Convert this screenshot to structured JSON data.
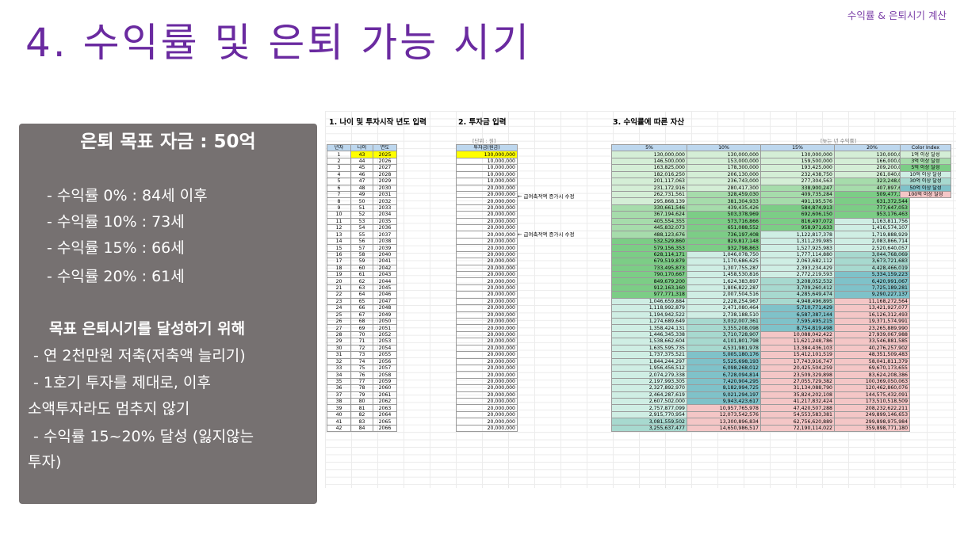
{
  "slide": {
    "top_label": "수익률 & 은퇴시기 계산",
    "title": "4. 수익률 및 은퇴 가능 시기"
  },
  "panel": {
    "title": "은퇴 목표 자금 : 50억",
    "rates": [
      "- 수익률    0% : 84세 이후",
      "- 수익률 10% : 73세",
      "- 수익률 15% : 66세",
      "- 수익률 20% : 61세"
    ],
    "plan_title": "목표 은퇴시기를 달성하기 위해",
    "plan_lines": [
      "- 연 2천만원 저축(저축액 늘리기)",
      "- 1호기 투자를 제대로, 이후",
      "소액투자라도 멈추지 않기",
      "- 수익률 15~20% 달성 (잃지않는",
      "투자)"
    ]
  },
  "sheet": {
    "section1": "1. 나이 및 투자시작 년도 입력",
    "section2": "2. 투자금 입력",
    "section3": "3. 수익률에 따른 자산",
    "unit_note": "[단위 : 원]",
    "year_note": "[늦는 년 수익률]",
    "headers": [
      "년차",
      "나이",
      "연도",
      "투자금(원금)",
      "5%",
      "10%",
      "15%",
      "20%"
    ],
    "note_text": "← 급여축적액 증가시 수정",
    "legend_title": "Color Index",
    "legend_items": [
      "1억 이상 달성",
      "3억 이상 달성",
      "5억 이상 달성",
      "10억 이상 달성",
      "30억 이상 달성",
      "50억 이상 달성",
      "100억 이상 달성"
    ],
    "legend_colors": [
      "#d4eed6",
      "#a6dcab",
      "#7ccd86",
      "#cfeee4",
      "#a7d9cf",
      "#7fc2c9",
      "#f4c6c6"
    ],
    "principal": [
      "130,000,000",
      "10,000,000",
      "10,000,000",
      "10,000,000",
      "10,000,000",
      "20,000,000",
      "20,000,000",
      "20,000,000",
      "20,000,000",
      "20,000,000",
      "20,000,000",
      "20,000,000",
      "20,000,000",
      "20,000,000",
      "20,000,000",
      "20,000,000",
      "20,000,000",
      "20,000,000",
      "20,000,000",
      "20,000,000",
      "20,000,000",
      "20,000,000",
      "20,000,000",
      "20,000,000",
      "20,000,000",
      "20,000,000",
      "20,000,000",
      "20,000,000",
      "20,000,000",
      "20,000,000",
      "20,000,000",
      "20,000,000",
      "20,000,000",
      "20,000,000",
      "20,000,000",
      "20,000,000",
      "20,000,000",
      "20,000,000",
      "20,000,000",
      "20,000,000",
      "20,000,000",
      "20,000,000"
    ],
    "r5": [
      "130,000,000",
      "146,500,000",
      "163,825,000",
      "182,016,250",
      "201,117,063",
      "231,172,916",
      "262,731,561",
      "295,868,139",
      "330,661,546",
      "367,194,624",
      "405,554,355",
      "445,832,073",
      "488,123,676",
      "532,529,860",
      "579,156,353",
      "628,114,171",
      "679,519,879",
      "733,495,873",
      "790,170,667",
      "849,679,200",
      "912,163,160",
      "977,771,318",
      "1,046,659,884",
      "1,118,992,879",
      "1,194,942,522",
      "1,274,689,649",
      "1,358,424,131",
      "1,446,345,338",
      "1,538,662,604",
      "1,635,595,735",
      "1,737,375,521",
      "1,844,244,297",
      "1,956,456,512",
      "2,074,279,338",
      "2,197,993,305",
      "2,327,892,970",
      "2,464,287,619",
      "2,607,502,000",
      "2,757,877,099",
      "2,915,770,954",
      "3,081,559,502",
      "3,255,637,477"
    ],
    "r10": [
      "130,000,000",
      "153,000,000",
      "178,300,000",
      "206,130,000",
      "236,743,000",
      "280,417,300",
      "328,459,030",
      "381,304,933",
      "439,435,426",
      "503,378,969",
      "573,716,866",
      "651,088,552",
      "736,197,408",
      "829,817,148",
      "932,798,863",
      "1,046,078,750",
      "1,170,686,625",
      "1,307,755,287",
      "1,458,530,816",
      "1,624,383,897",
      "1,806,822,287",
      "2,007,504,516",
      "2,228,254,967",
      "2,471,080,464",
      "2,738,188,510",
      "3,032,007,361",
      "3,355,208,098",
      "3,710,728,907",
      "4,101,801,798",
      "4,531,981,978",
      "5,005,180,176",
      "5,525,698,193",
      "6,098,268,012",
      "6,728,094,814",
      "7,420,904,295",
      "8,182,994,725",
      "9,021,294,197",
      "9,943,423,617",
      "10,957,765,978",
      "12,073,542,576",
      "13,300,896,834",
      "14,650,986,517"
    ],
    "r15": [
      "130,000,000",
      "159,500,000",
      "193,425,000",
      "232,438,750",
      "277,304,563",
      "338,900,247",
      "409,735,284",
      "491,195,576",
      "584,874,913",
      "692,606,150",
      "816,497,072",
      "958,971,633",
      "1,122,817,378",
      "1,311,239,985",
      "1,527,925,983",
      "1,777,114,880",
      "2,063,682,112",
      "2,393,234,429",
      "2,772,219,593",
      "3,208,052,532",
      "3,709,260,412",
      "4,285,649,474",
      "4,948,496,895",
      "5,710,771,429",
      "6,587,387,144",
      "7,595,495,215",
      "8,754,819,498",
      "10,088,042,422",
      "11,621,248,786",
      "13,384,436,103",
      "15,412,101,519",
      "17,743,916,747",
      "20,425,504,259",
      "23,509,329,898",
      "27,055,729,382",
      "31,134,088,790",
      "35,824,202,108",
      "41,217,832,424",
      "47,420,507,288",
      "54,553,583,381",
      "62,756,620,889",
      "72,190,114,022"
    ],
    "r20": [
      "130,000,000",
      "166,000,000",
      "209,200,000",
      "261,040,000",
      "323,248,000",
      "407,897,600",
      "509,477,120",
      "631,372,544",
      "777,647,053",
      "953,176,463",
      "1,163,811,756",
      "1,416,574,107",
      "1,719,888,929",
      "2,083,866,714",
      "2,520,640,057",
      "3,044,768,069",
      "3,673,721,683",
      "4,428,466,019",
      "5,334,159,223",
      "6,420,991,067",
      "7,725,189,281",
      "9,290,227,137",
      "11,168,272,564",
      "13,421,927,077",
      "16,126,312,493",
      "19,371,574,991",
      "23,265,889,990",
      "27,939,067,988",
      "33,546,881,585",
      "40,276,257,902",
      "48,351,509,483",
      "58,041,811,379",
      "69,670,173,655",
      "83,624,208,386",
      "100,369,050,063",
      "120,462,860,076",
      "144,575,432,091",
      "173,510,518,509",
      "208,232,622,211",
      "249,899,146,653",
      "299,898,975,984",
      "359,898,771,180"
    ]
  }
}
